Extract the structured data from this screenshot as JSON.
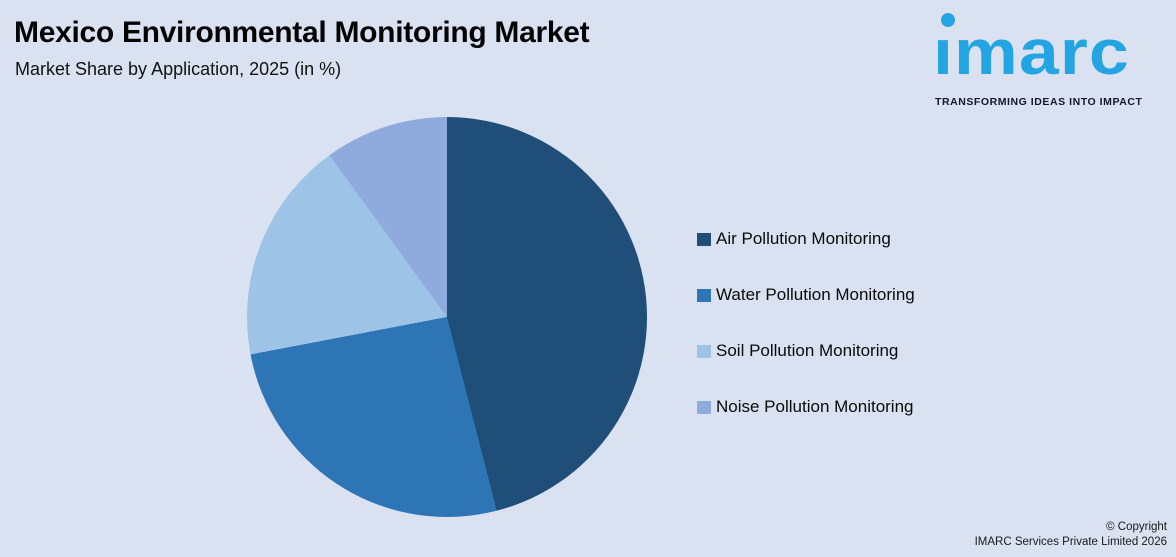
{
  "background_color": "#dae2f1",
  "header": {
    "title": "Mexico Environmental Monitoring Market",
    "subtitle": "Market Share by Application, 2025 (in %)"
  },
  "logo": {
    "wordmark": "ımarc",
    "tagline": "TRANSFORMING IDEAS INTO IMPACT",
    "brand_color": "#22a5e2"
  },
  "chart_data": {
    "type": "pie",
    "title": "Mexico Environmental Monitoring Market",
    "subtitle": "Market Share by Application, 2025 (in %)",
    "unit": "%",
    "categories": [
      "Air Pollution Monitoring",
      "Water Pollution Monitoring",
      "Soil Pollution Monitoring",
      "Noise Pollution Monitoring"
    ],
    "values": [
      46,
      26,
      18,
      10
    ],
    "colors": [
      "#1f4e79",
      "#2e75b6",
      "#9dc3e6",
      "#8faadc"
    ],
    "start_angle_deg": 0,
    "direction": "clockwise",
    "legend_position": "right",
    "data_labels": false
  },
  "legend": {
    "items": [
      {
        "label": "Air Pollution Monitoring",
        "color": "#1f4e79"
      },
      {
        "label": "Water Pollution Monitoring",
        "color": "#2e75b6"
      },
      {
        "label": "Soil Pollution Monitoring",
        "color": "#9dc3e6"
      },
      {
        "label": "Noise Pollution Monitoring",
        "color": "#8faadc"
      }
    ]
  },
  "footer": {
    "line1": "© Copyright",
    "line2": "IMARC Services Private Limited 2026"
  }
}
